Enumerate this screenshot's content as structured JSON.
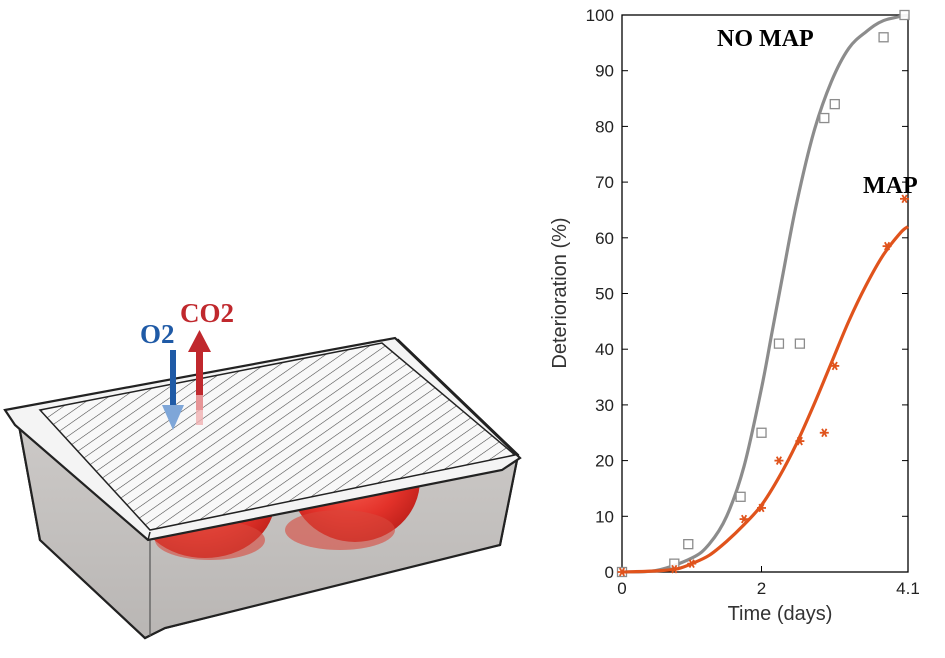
{
  "illustration": {
    "o2_label": "O2",
    "co2_label": "CO2",
    "o2_color": "#1f5aa6",
    "co2_color": "#c0282d"
  },
  "chart_data": {
    "type": "line",
    "title": "",
    "xlabel": "Time (days)",
    "ylabel": "Deterioration (%)",
    "xlim": [
      0,
      4.1
    ],
    "ylim": [
      0,
      100
    ],
    "x_ticks": [
      0,
      2,
      4.1
    ],
    "x_tick_labels": [
      "0",
      "2",
      "4.1"
    ],
    "y_ticks": [
      0,
      10,
      20,
      30,
      40,
      50,
      60,
      70,
      80,
      90,
      100
    ],
    "y_tick_labels": [
      "0",
      "10",
      "20",
      "30",
      "40",
      "50",
      "60",
      "70",
      "80",
      "90",
      "100"
    ],
    "series": [
      {
        "name": "NO MAP",
        "color": "#8c8c8c",
        "marker": "square",
        "points": {
          "x": [
            0,
            0.75,
            0.95,
            1.7,
            2.0,
            2.25,
            2.55,
            2.9,
            3.05,
            3.75,
            4.05
          ],
          "y": [
            0,
            1.5,
            5,
            13.5,
            25,
            41,
            41,
            81.5,
            84,
            96,
            100
          ]
        },
        "fit": {
          "x": [
            0,
            0.5,
            1.0,
            1.25,
            1.5,
            1.75,
            2.0,
            2.15,
            2.3,
            2.5,
            2.75,
            3.0,
            3.25,
            3.5,
            3.75,
            4.1
          ],
          "y": [
            0,
            0.3,
            2.5,
            5,
            10,
            19,
            33,
            43,
            53,
            66,
            79,
            88,
            94,
            97,
            99,
            100
          ]
        }
      },
      {
        "name": "MAP",
        "color": "#e0531c",
        "marker": "asterisk",
        "points": {
          "x": [
            0,
            0.75,
            1.0,
            1.75,
            2.0,
            2.25,
            2.55,
            2.9,
            3.05,
            3.8,
            4.05
          ],
          "y": [
            0,
            0.5,
            1.5,
            9.5,
            11.5,
            20,
            23.5,
            25,
            37,
            58.5,
            67
          ]
        },
        "fit": {
          "x": [
            0,
            0.5,
            0.8,
            1.0,
            1.25,
            1.5,
            1.75,
            2.0,
            2.25,
            2.5,
            2.75,
            3.0,
            3.25,
            3.5,
            3.75,
            4.0,
            4.1
          ],
          "y": [
            0,
            0.2,
            0.6,
            1.5,
            3,
            5.5,
            8.5,
            12,
            17,
            23,
            30,
            37.5,
            45,
            51.5,
            57,
            61,
            62
          ]
        }
      }
    ]
  }
}
